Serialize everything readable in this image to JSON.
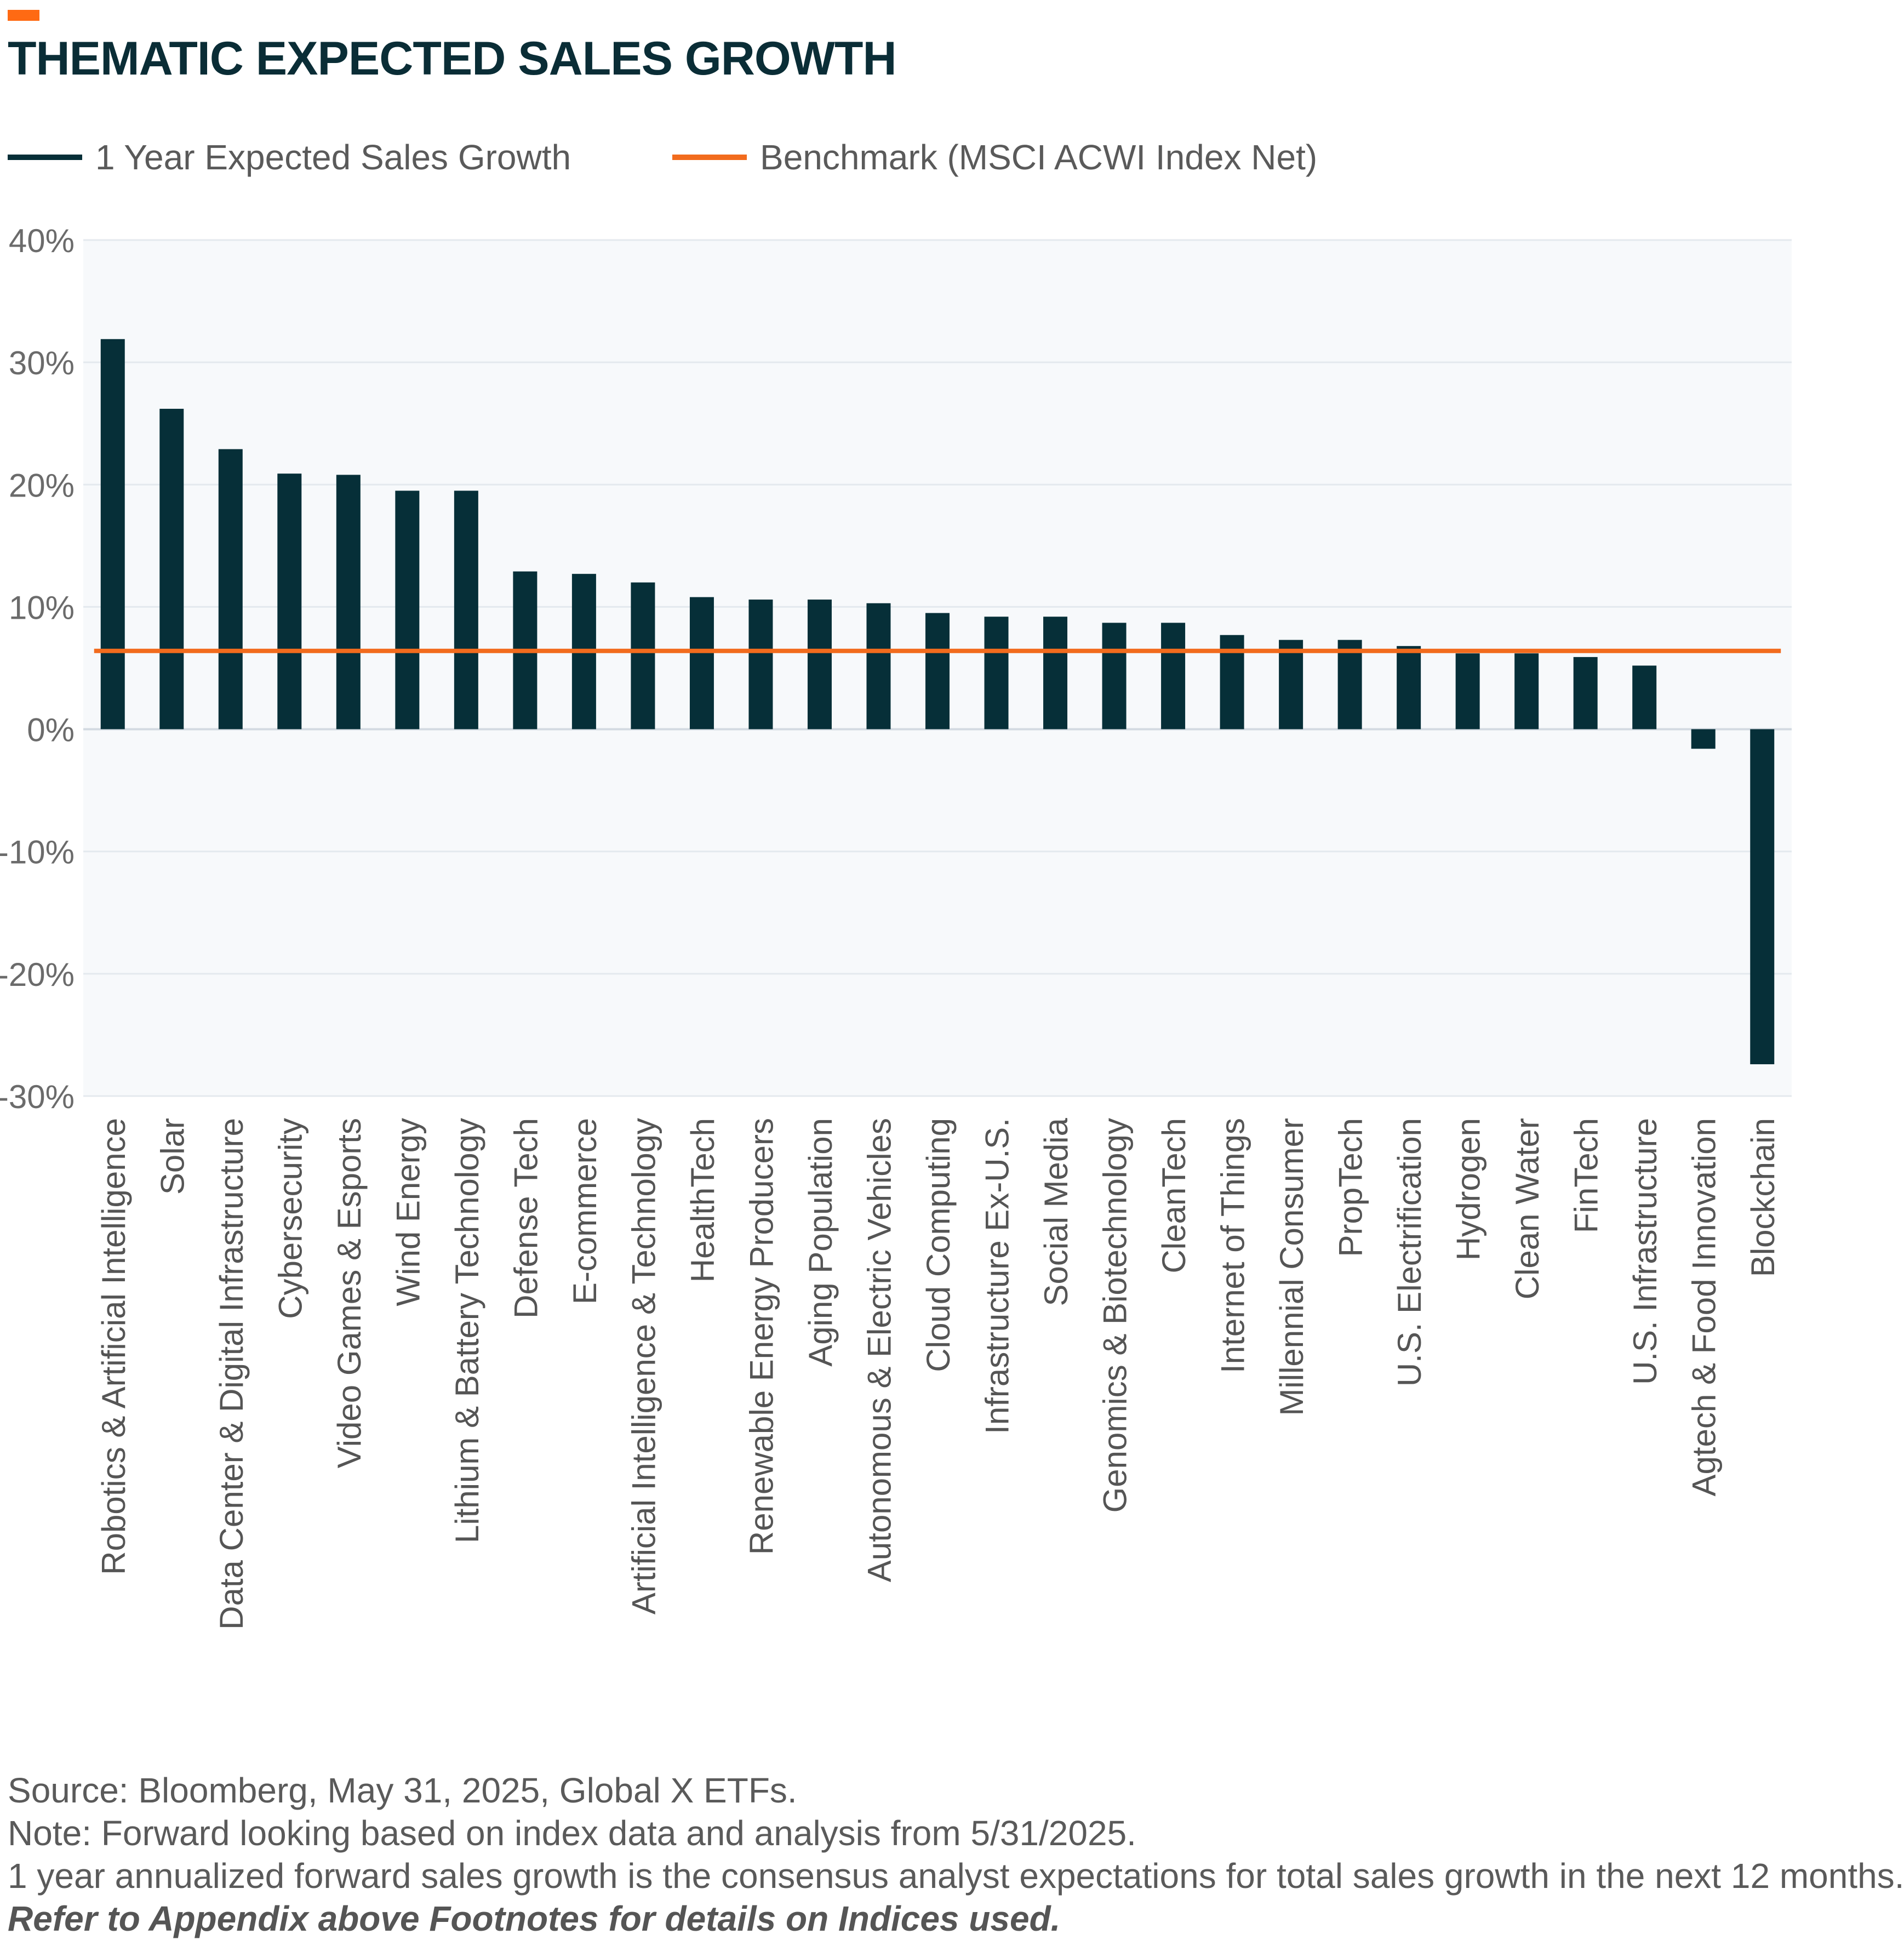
{
  "title": "THEMATIC EXPECTED SALES GROWTH",
  "colors": {
    "accent": "#ff6a13",
    "bar": "#062f38",
    "benchmark": "#f26b1d",
    "plot_background": "#f7f9fb",
    "grid": "#e4e9ee",
    "title": "#0a2d36"
  },
  "legend": {
    "series_label": "1 Year Expected Sales Growth",
    "benchmark_label": "Benchmark (MSCI ACWI Index Net)"
  },
  "chart_data": {
    "type": "bar",
    "title": "THEMATIC EXPECTED SALES GROWTH",
    "xlabel": "",
    "ylabel": "",
    "ylim": [
      -30,
      40
    ],
    "yticks": [
      40,
      30,
      20,
      10,
      0,
      -10,
      -20,
      -30
    ],
    "ytick_labels": [
      "40%",
      "30%",
      "20%",
      "10%",
      "0%",
      "-10%",
      "-20%",
      "-30%"
    ],
    "grid": true,
    "legend_position": "top-left",
    "categories": [
      "Robotics & Artificial Intelligence",
      "Solar",
      "Data Center & Digital Infrastructure",
      "Cybersecurity",
      "Video Games & Esports",
      "Wind Energy",
      "Lithium & Battery Technology",
      "Defense Tech",
      "E-commerce",
      "Artificial Intelligence & Technology",
      "HealthTech",
      "Renewable Energy Producers",
      "Aging Population",
      "Autonomous & Electric Vehicles",
      "Cloud Computing",
      "Infrastructure Ex-U.S.",
      "Social Media",
      "Genomics & Biotechnology",
      "CleanTech",
      "Internet of Things",
      "Millennial Consumer",
      "PropTech",
      "U.S. Electrification",
      "Hydrogen",
      "Clean Water",
      "FinTech",
      "U.S. Infrastructure",
      "Agtech & Food Innovation",
      "Blockchain"
    ],
    "series": [
      {
        "name": "1 Year Expected Sales Growth",
        "values": [
          31.9,
          26.2,
          22.9,
          20.9,
          20.8,
          19.5,
          19.5,
          12.9,
          12.7,
          12.0,
          10.8,
          10.6,
          10.6,
          10.3,
          9.5,
          9.2,
          9.2,
          8.7,
          8.7,
          7.7,
          7.3,
          7.3,
          6.8,
          6.2,
          6.2,
          5.9,
          5.2,
          -1.6,
          -27.4
        ]
      }
    ],
    "benchmark": {
      "name": "Benchmark (MSCI ACWI Index Net)",
      "value": 6.4
    }
  },
  "notes": {
    "source": "Source: Bloomberg, May 31, 2025, Global X ETFs.",
    "note": "Note: Forward looking based on index data and analysis from 5/31/2025.",
    "definition": "1 year annualized forward sales growth is the consensus analyst expectations for total sales growth in the next 12 months.",
    "appendix": "Refer to Appendix above Footnotes for details on Indices used."
  }
}
